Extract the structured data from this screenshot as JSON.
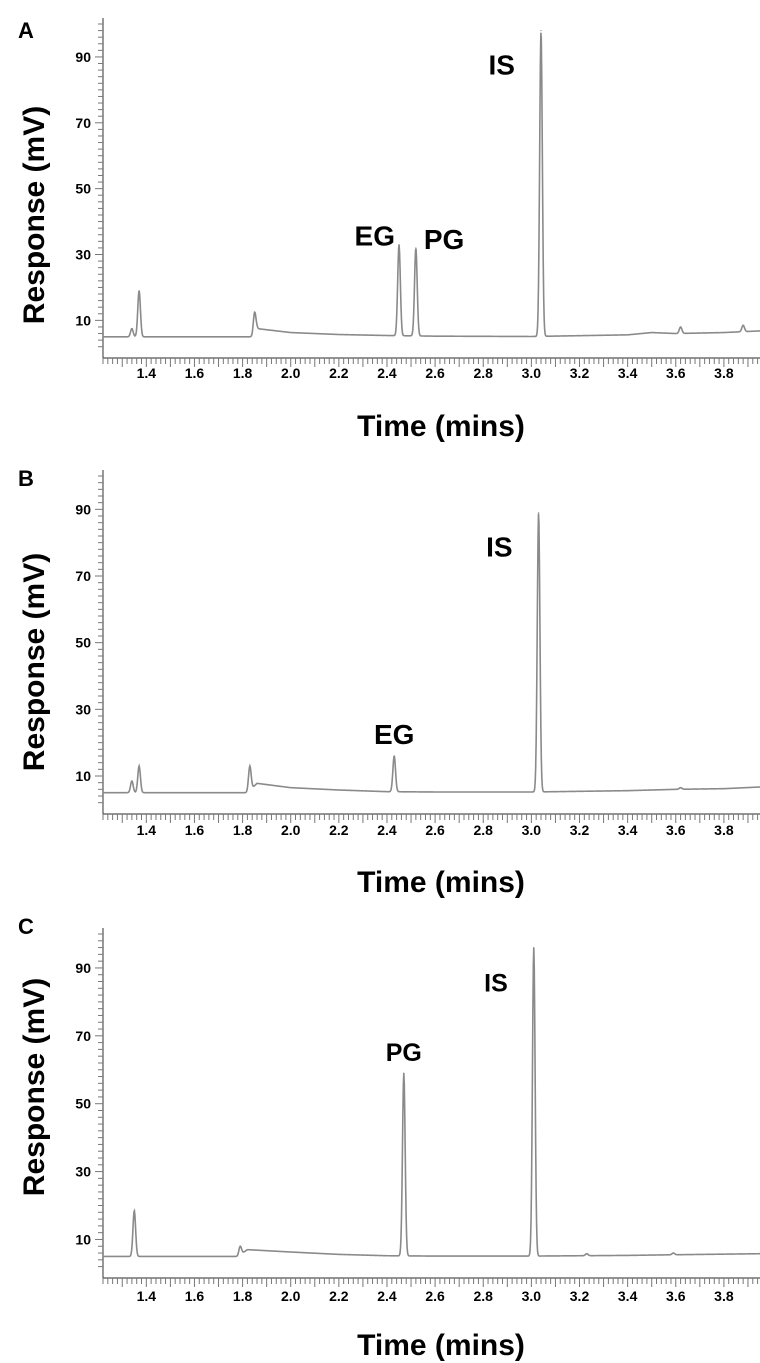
{
  "chart_data": [
    {
      "type": "line",
      "panel_label": "A",
      "xlabel": "Time (mins)",
      "ylabel": "Response (mV)",
      "xlim": [
        1.22,
        3.95
      ],
      "ylim": [
        1,
        100
      ],
      "xticks": [
        1.4,
        1.6,
        1.8,
        2.0,
        2.2,
        2.4,
        2.6,
        2.8,
        3.0,
        3.2,
        3.4,
        3.6,
        3.8
      ],
      "yticks": [
        10,
        30,
        50,
        70,
        90
      ],
      "grid": false,
      "baseline": [
        [
          1.22,
          5.0
        ],
        [
          1.84,
          5.0
        ],
        [
          1.86,
          7.5
        ],
        [
          2.0,
          6.3
        ],
        [
          2.2,
          5.7
        ],
        [
          2.4,
          5.4
        ],
        [
          2.6,
          5.2
        ],
        [
          3.0,
          5.1
        ],
        [
          3.4,
          5.6
        ],
        [
          3.5,
          6.3
        ],
        [
          3.6,
          6.0
        ],
        [
          3.8,
          6.3
        ],
        [
          3.95,
          6.8
        ]
      ],
      "peaks": [
        {
          "t": 1.34,
          "height": 7.5,
          "label": ""
        },
        {
          "t": 1.37,
          "height": 19.0,
          "label": ""
        },
        {
          "t": 1.85,
          "height": 12.5,
          "label": ""
        },
        {
          "t": 2.45,
          "height": 33.0,
          "label": "EG"
        },
        {
          "t": 2.52,
          "height": 32.0,
          "label": "PG"
        },
        {
          "t": 3.04,
          "height": 98.0,
          "label": "IS"
        },
        {
          "t": 3.62,
          "height": 8.0,
          "label": ""
        },
        {
          "t": 3.88,
          "height": 8.5,
          "label": ""
        }
      ]
    },
    {
      "type": "line",
      "panel_label": "B",
      "xlabel": "Time (mins)",
      "ylabel": "Response (mV)",
      "xlim": [
        1.22,
        3.95
      ],
      "ylim": [
        1,
        100
      ],
      "xticks": [
        1.4,
        1.6,
        1.8,
        2.0,
        2.2,
        2.4,
        2.6,
        2.8,
        3.0,
        3.2,
        3.4,
        3.6,
        3.8
      ],
      "yticks": [
        10,
        30,
        50,
        70,
        90
      ],
      "grid": false,
      "baseline": [
        [
          1.22,
          5.0
        ],
        [
          1.82,
          5.0
        ],
        [
          1.86,
          7.8
        ],
        [
          2.0,
          6.5
        ],
        [
          2.2,
          5.8
        ],
        [
          2.4,
          5.3
        ],
        [
          2.6,
          5.2
        ],
        [
          3.0,
          5.2
        ],
        [
          3.4,
          5.6
        ],
        [
          3.6,
          6.0
        ],
        [
          3.8,
          6.2
        ],
        [
          3.95,
          6.7
        ]
      ],
      "peaks": [
        {
          "t": 1.34,
          "height": 8.5,
          "label": ""
        },
        {
          "t": 1.37,
          "height": 13.0,
          "label": ""
        },
        {
          "t": 1.83,
          "height": 13.0,
          "label": ""
        },
        {
          "t": 2.43,
          "height": 16.0,
          "label": "EG"
        },
        {
          "t": 3.03,
          "height": 89.0,
          "label": "IS"
        },
        {
          "t": 3.62,
          "height": 6.5,
          "label": ""
        }
      ]
    },
    {
      "type": "line",
      "panel_label": "C",
      "xlabel": "Time (mins)",
      "ylabel": "Response (mV)",
      "xlim": [
        1.22,
        3.95
      ],
      "ylim": [
        1,
        100
      ],
      "xticks": [
        1.4,
        1.6,
        1.8,
        2.0,
        2.2,
        2.4,
        2.6,
        2.8,
        3.0,
        3.2,
        3.4,
        3.6,
        3.8
      ],
      "yticks": [
        10,
        30,
        50,
        70,
        90
      ],
      "grid": false,
      "baseline": [
        [
          1.22,
          5.0
        ],
        [
          1.78,
          5.0
        ],
        [
          1.82,
          7.0
        ],
        [
          2.0,
          6.3
        ],
        [
          2.2,
          5.6
        ],
        [
          2.4,
          5.2
        ],
        [
          2.6,
          5.1
        ],
        [
          3.0,
          5.1
        ],
        [
          3.4,
          5.3
        ],
        [
          3.6,
          5.5
        ],
        [
          3.95,
          5.8
        ]
      ],
      "peaks": [
        {
          "t": 1.35,
          "height": 18.5,
          "label": ""
        },
        {
          "t": 1.79,
          "height": 8.0,
          "label": ""
        },
        {
          "t": 2.47,
          "height": 59.0,
          "label": "PG"
        },
        {
          "t": 3.01,
          "height": 96.0,
          "label": "IS"
        },
        {
          "t": 3.23,
          "height": 5.8,
          "label": ""
        },
        {
          "t": 3.59,
          "height": 6.0,
          "label": ""
        }
      ]
    }
  ]
}
